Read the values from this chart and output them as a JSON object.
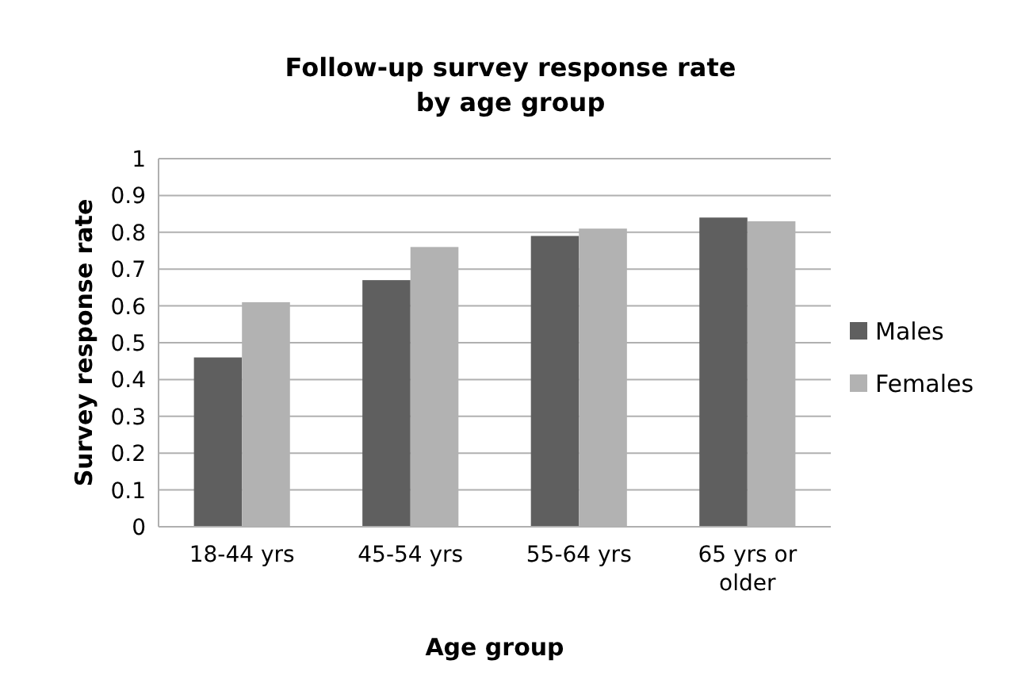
{
  "chart_data": {
    "type": "bar",
    "title": "Follow-up survey response rate\nby age group",
    "xlabel": "Age group",
    "ylabel": "Survey response rate",
    "categories": [
      "18-44 yrs",
      "45-54 yrs",
      "55-64 yrs",
      "65 yrs or older"
    ],
    "series": [
      {
        "name": "Males",
        "color": "#5f5f5f",
        "values": [
          0.46,
          0.67,
          0.79,
          0.84
        ]
      },
      {
        "name": "Females",
        "color": "#b2b2b2",
        "values": [
          0.61,
          0.76,
          0.81,
          0.83
        ]
      }
    ],
    "ylim": [
      0,
      1
    ],
    "yticks": [
      0,
      0.1,
      0.2,
      0.3,
      0.4,
      0.5,
      0.6,
      0.7,
      0.8,
      0.9,
      1
    ],
    "grid": "y",
    "legend": "right"
  }
}
